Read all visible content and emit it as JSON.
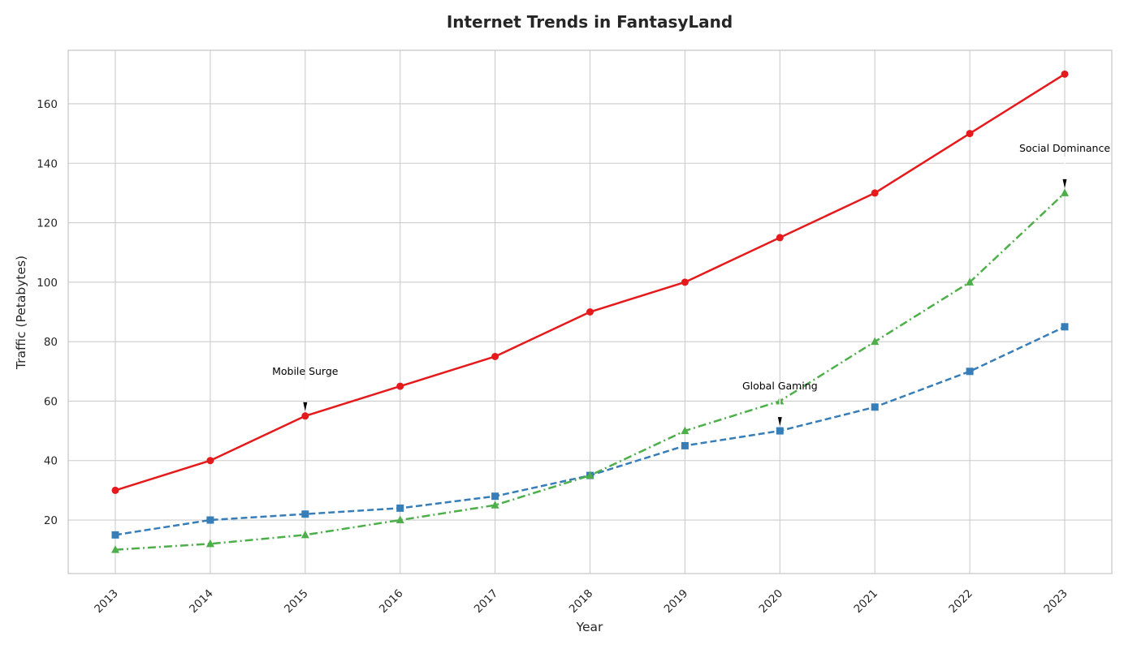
{
  "chart_data": {
    "type": "line",
    "title": "Internet Trends in FantasyLand",
    "xlabel": "Year",
    "ylabel": "Traffic (Petabytes)",
    "x": [
      2013,
      2014,
      2015,
      2016,
      2017,
      2018,
      2019,
      2020,
      2021,
      2022,
      2023
    ],
    "ylim": [
      2,
      178
    ],
    "yticks": [
      20,
      40,
      60,
      80,
      100,
      120,
      140,
      160
    ],
    "grid": true,
    "series": [
      {
        "key": "red",
        "color": "#e41a1c",
        "marker": "circle",
        "linestyle": "solid",
        "values": [
          30,
          40,
          55,
          65,
          75,
          90,
          100,
          115,
          130,
          150,
          170
        ]
      },
      {
        "key": "blue",
        "color": "#377eb8",
        "marker": "square",
        "linestyle": "dashed",
        "values": [
          15,
          20,
          22,
          24,
          28,
          35,
          45,
          50,
          58,
          70,
          85
        ]
      },
      {
        "key": "green",
        "color": "#4daf4a",
        "marker": "triangle",
        "linestyle": "dashdot",
        "values": [
          10,
          12,
          15,
          20,
          25,
          35,
          50,
          60,
          80,
          100,
          130
        ]
      }
    ],
    "annotations": [
      {
        "text": "Mobile Surge",
        "x": 2015,
        "y": 55,
        "text_y": 70
      },
      {
        "text": "Global Gaming",
        "x": 2020,
        "y": 50,
        "text_y": 65
      },
      {
        "text": "Social Dominance",
        "x": 2023,
        "y": 130,
        "text_y": 145
      }
    ]
  }
}
